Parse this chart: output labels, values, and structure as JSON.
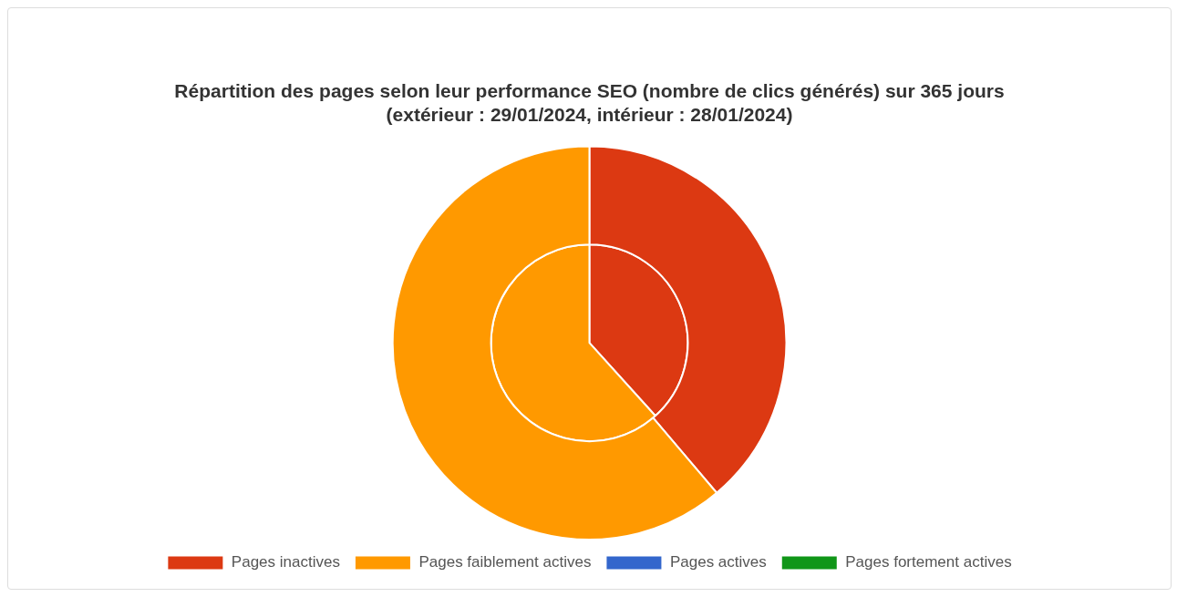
{
  "chart_data": {
    "type": "pie",
    "title": "Répartition des pages selon leur performance SEO (nombre de clics générés) sur 365 jours\n(extérieur : 29/01/2024, intérieur : 28/01/2024)",
    "categories": [
      "Pages inactives",
      "Pages faiblement actives",
      "Pages actives",
      "Pages fortement actives"
    ],
    "colors": [
      "#dc3912",
      "#ff9900",
      "#3366cc",
      "#109618"
    ],
    "series": [
      {
        "values": [
          38.8,
          61.2,
          0,
          0
        ]
      },
      {
        "values": [
          38.3,
          61.7,
          0,
          0
        ]
      }
    ],
    "legend": "bottom"
  }
}
